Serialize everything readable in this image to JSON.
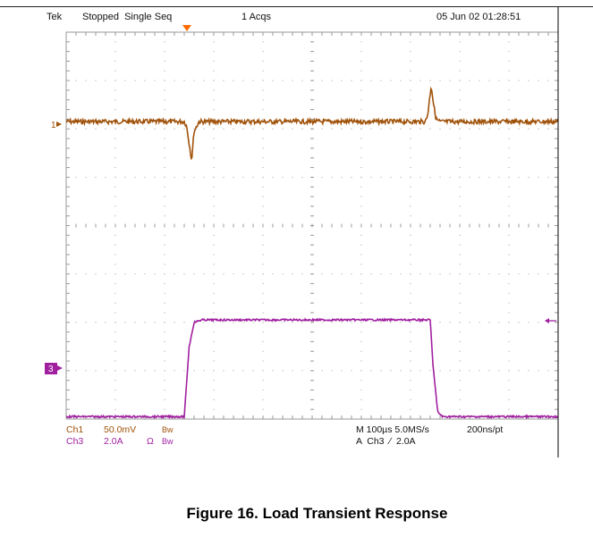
{
  "header": {
    "brand": "Tek",
    "status": "Stopped  Single Seq",
    "acqs": "1 Acqs",
    "datetime": "05 Jun 02 01:28:51"
  },
  "markers": {
    "ch1": "1",
    "ch3": "3"
  },
  "footer": {
    "ch1_name": "Ch1",
    "ch1_scale": "50.0mV",
    "ch1_bw": "Bw",
    "ch3_name": "Ch3",
    "ch3_scale": "2.0A",
    "ch3_ohm": "Ω",
    "ch3_bw": "Bw",
    "timebase": "M 100µs 5.0MS/s",
    "sample": "200ns/pt",
    "trigger": "A  Ch3  ∕  2.0A"
  },
  "caption": "Figure 16. Load Transient Response",
  "colors": {
    "ch1": "#a0520a",
    "ch3": "#a020a0",
    "grid": "#9a9a9a",
    "trigger": "#ff6a00"
  },
  "chart_data": {
    "type": "line",
    "x_unit": "div",
    "xlim": [
      0,
      10
    ],
    "ylim": [
      0,
      8
    ],
    "series": [
      {
        "name": "Ch1",
        "x": [
          0,
          2.4,
          2.45,
          2.5,
          2.55,
          2.6,
          2.7,
          7.3,
          7.35,
          7.42,
          7.47,
          7.52,
          7.6,
          10
        ],
        "y": [
          6.15,
          6.15,
          6.05,
          5.7,
          5.35,
          5.95,
          6.15,
          6.15,
          6.3,
          6.9,
          6.5,
          6.2,
          6.15,
          6.15
        ]
      },
      {
        "name": "Ch3",
        "x": [
          0,
          2.4,
          2.5,
          2.6,
          2.75,
          7.4,
          7.45,
          7.55,
          7.65,
          10
        ],
        "y": [
          0.05,
          0.05,
          1.5,
          2.0,
          2.05,
          2.05,
          1.2,
          0.15,
          0.05,
          0.05
        ]
      }
    ]
  }
}
